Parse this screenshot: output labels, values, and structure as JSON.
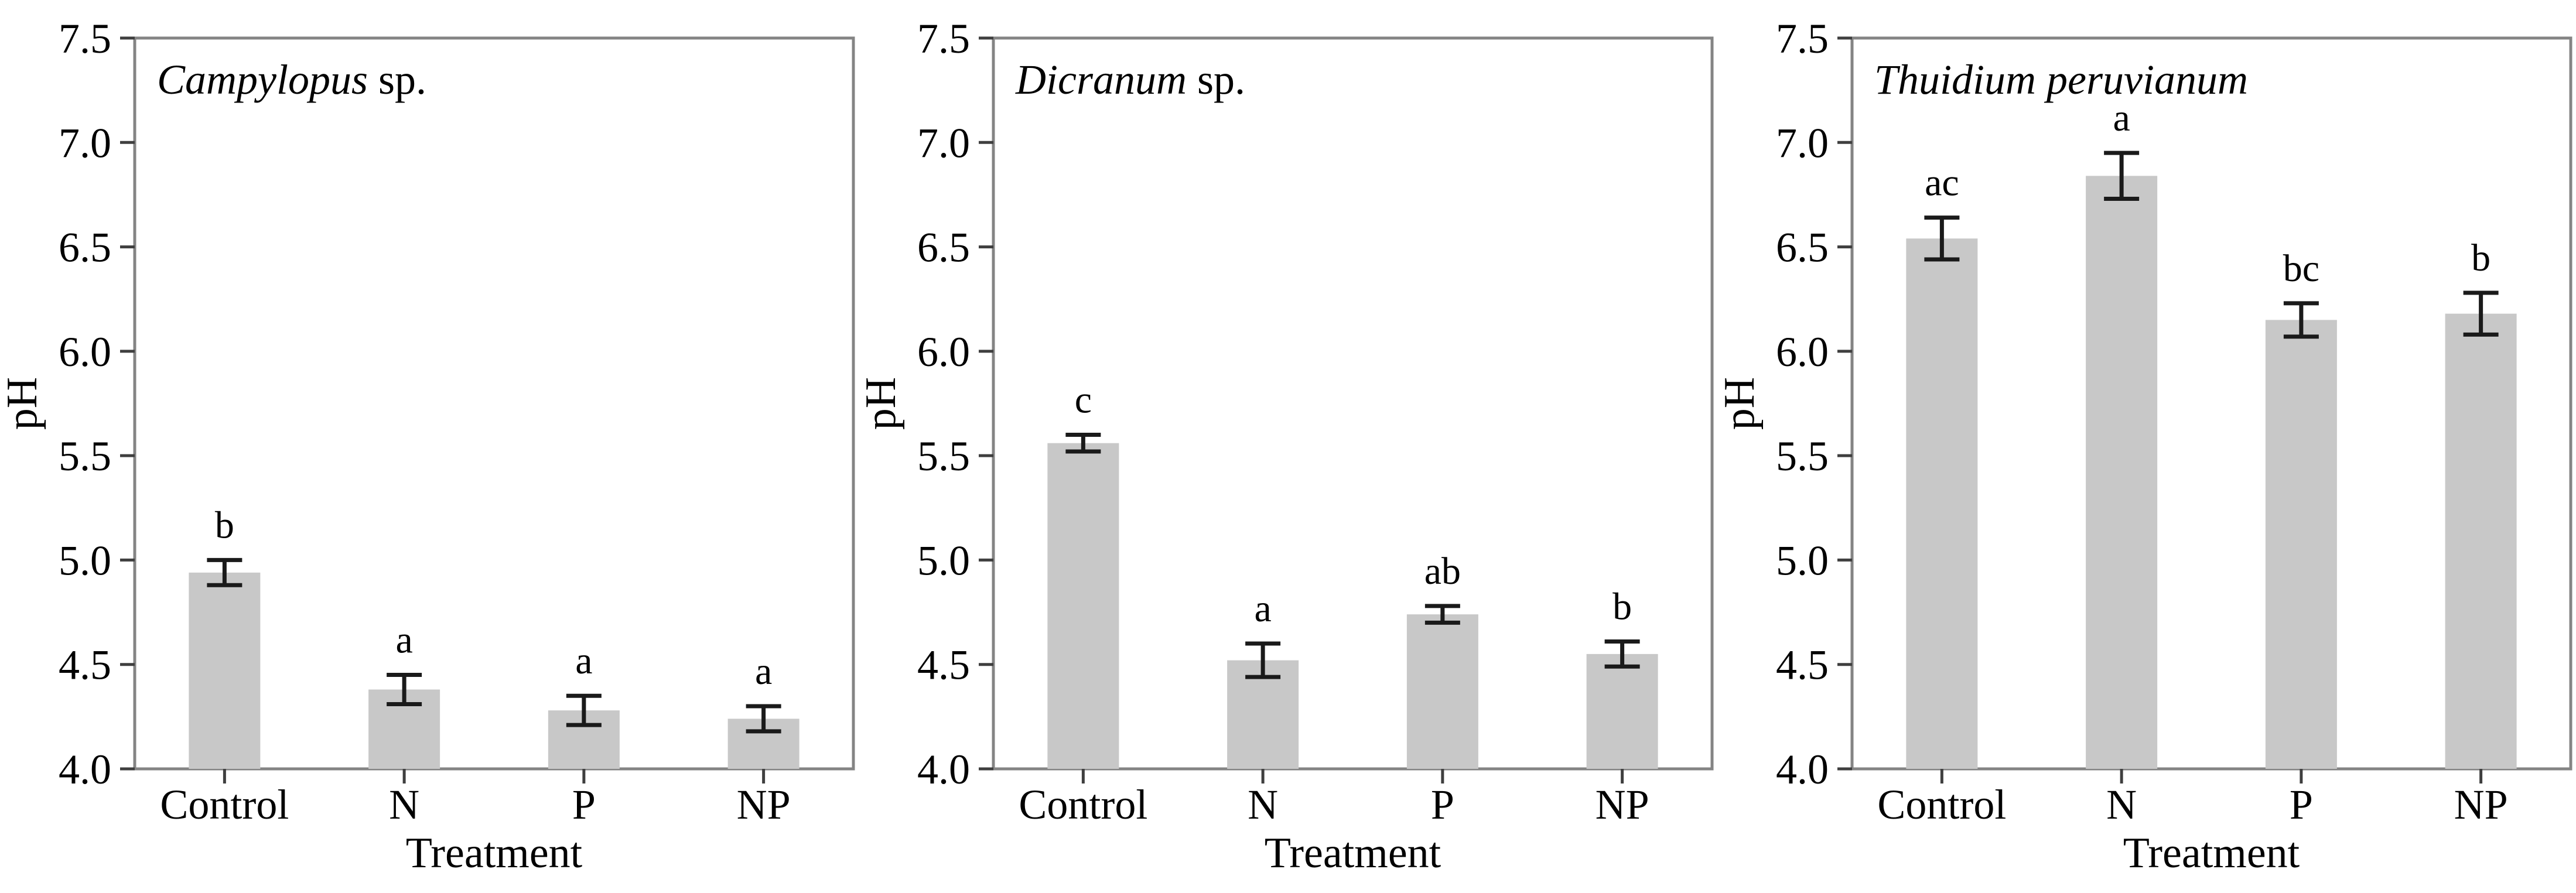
{
  "figure": {
    "description": "Three-panel bar chart of substrate pH for three moss species under nutrient addition treatments, with standard-error bars and significance letters",
    "background_color": "#ffffff",
    "bar_color": "#c8c8c8",
    "spine_color": "#848484",
    "tick_color": "#3f3f3f",
    "error_bar_color": "#1a1a1a",
    "text_color": "#000000"
  },
  "chart_data": [
    {
      "type": "bar",
      "panel_key": "campylopus",
      "title_italic": "Campylopus",
      "title_roman": " sp.",
      "xlabel": "Treatment",
      "ylabel": "pH",
      "ylim": [
        4.0,
        7.5
      ],
      "ytick_labels": [
        "7.5",
        "7.0",
        "6.5",
        "6.0",
        "5.5",
        "5.0",
        "4.5",
        "4.0"
      ],
      "ytick_values": [
        7.5,
        7.0,
        6.5,
        6.0,
        5.5,
        5.0,
        4.5,
        4.0
      ],
      "categories": [
        "Control",
        "N",
        "P",
        "NP"
      ],
      "values": [
        4.94,
        4.38,
        4.28,
        4.24
      ],
      "errors": [
        0.06,
        0.07,
        0.07,
        0.06
      ],
      "sig_letters": [
        "b",
        "a",
        "a",
        "a"
      ],
      "grid": "off",
      "legend": "none",
      "box": "on"
    },
    {
      "type": "bar",
      "panel_key": "dicranum",
      "title_italic": "Dicranum",
      "title_roman": " sp.",
      "xlabel": "Treatment",
      "ylabel": "pH",
      "ylim": [
        4.0,
        7.5
      ],
      "ytick_labels": [
        "7.5",
        "7.0",
        "6.5",
        "6.0",
        "5.5",
        "5.0",
        "4.5",
        "4.0"
      ],
      "ytick_values": [
        7.5,
        7.0,
        6.5,
        6.0,
        5.5,
        5.0,
        4.5,
        4.0
      ],
      "categories": [
        "Control",
        "N",
        "P",
        "NP"
      ],
      "values": [
        5.56,
        4.52,
        4.74,
        4.55
      ],
      "errors": [
        0.04,
        0.08,
        0.04,
        0.06
      ],
      "sig_letters": [
        "c",
        "a",
        "ab",
        "b"
      ],
      "grid": "off",
      "legend": "none",
      "box": "on"
    },
    {
      "type": "bar",
      "panel_key": "thuidium",
      "title_italic": "Thuidium peruvianum",
      "title_roman": "",
      "xlabel": "Treatment",
      "ylabel": "pH",
      "ylim": [
        4.0,
        7.5
      ],
      "ytick_labels": [
        "7.5",
        "7.0",
        "6.5",
        "6.0",
        "5.5",
        "5.0",
        "4.5",
        "4.0"
      ],
      "ytick_values": [
        7.5,
        7.0,
        6.5,
        6.0,
        5.5,
        5.0,
        4.5,
        4.0
      ],
      "categories": [
        "Control",
        "N",
        "P",
        "NP"
      ],
      "values": [
        6.54,
        6.84,
        6.15,
        6.18
      ],
      "errors": [
        0.1,
        0.11,
        0.08,
        0.1
      ],
      "sig_letters": [
        "ac",
        "a",
        "bc",
        "b"
      ],
      "grid": "off",
      "legend": "none",
      "box": "on"
    }
  ]
}
